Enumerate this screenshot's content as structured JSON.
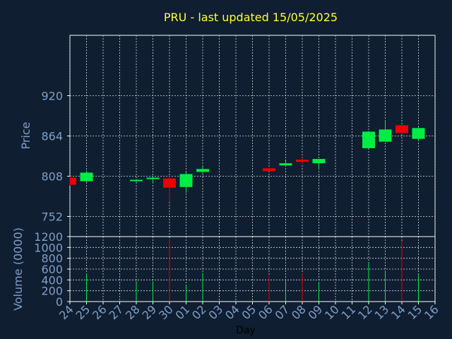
{
  "chart_data": {
    "type": "candlestick",
    "title": "PRU - last updated 15/05/2025",
    "xlabel": "Day",
    "price_panel": {
      "ylabel": "Price",
      "yticks": [
        752,
        808,
        864,
        920
      ],
      "ylim": [
        724,
        1004
      ],
      "grid": true
    },
    "volume_panel": {
      "ylabel": "Volume (0000)",
      "yticks": [
        0,
        200,
        400,
        600,
        800,
        1000,
        1200
      ],
      "ylim": [
        0,
        1200
      ],
      "grid": true
    },
    "x_labels": [
      "24",
      "25",
      "26",
      "27",
      "28",
      "29",
      "30",
      "01",
      "02",
      "03",
      "04",
      "05",
      "06",
      "07",
      "08",
      "09",
      "10",
      "11",
      "12",
      "13",
      "14",
      "15",
      "16"
    ],
    "candles": [
      {
        "day": "24",
        "open": 806,
        "high": 808,
        "low": 795,
        "close": 796,
        "volume": 0
      },
      {
        "day": "25",
        "open": 801,
        "high": 816,
        "low": 800,
        "close": 813,
        "volume": 510
      },
      {
        "day": "28",
        "open": 802,
        "high": 804,
        "low": 800,
        "close": 803,
        "volume": 380
      },
      {
        "day": "29",
        "open": 804,
        "high": 808,
        "low": 798,
        "close": 806,
        "volume": 380
      },
      {
        "day": "30",
        "open": 805,
        "high": 808,
        "low": 772,
        "close": 792,
        "volume": 1150
      },
      {
        "day": "01",
        "open": 793,
        "high": 814,
        "low": 785,
        "close": 811,
        "volume": 310
      },
      {
        "day": "02",
        "open": 814,
        "high": 823,
        "low": 812,
        "close": 818,
        "volume": 530
      },
      {
        "day": "06",
        "open": 819,
        "high": 820,
        "low": 815,
        "close": 815,
        "volume": 480
      },
      {
        "day": "07",
        "open": 823,
        "high": 829,
        "low": 821,
        "close": 826,
        "volume": 420
      },
      {
        "day": "08",
        "open": 831,
        "high": 834,
        "low": 825,
        "close": 828,
        "volume": 520
      },
      {
        "day": "09",
        "open": 826,
        "high": 832,
        "low": 817,
        "close": 832,
        "volume": 360
      },
      {
        "day": "12",
        "open": 847,
        "high": 871,
        "low": 847,
        "close": 870,
        "volume": 720
      },
      {
        "day": "13",
        "open": 856,
        "high": 885,
        "low": 856,
        "close": 873,
        "volume": 570
      },
      {
        "day": "14",
        "open": 879,
        "high": 879,
        "low": 867,
        "close": 868,
        "volume": 1120
      },
      {
        "day": "15",
        "open": 860,
        "high": 876,
        "low": 857,
        "close": 875,
        "volume": 490
      }
    ]
  }
}
